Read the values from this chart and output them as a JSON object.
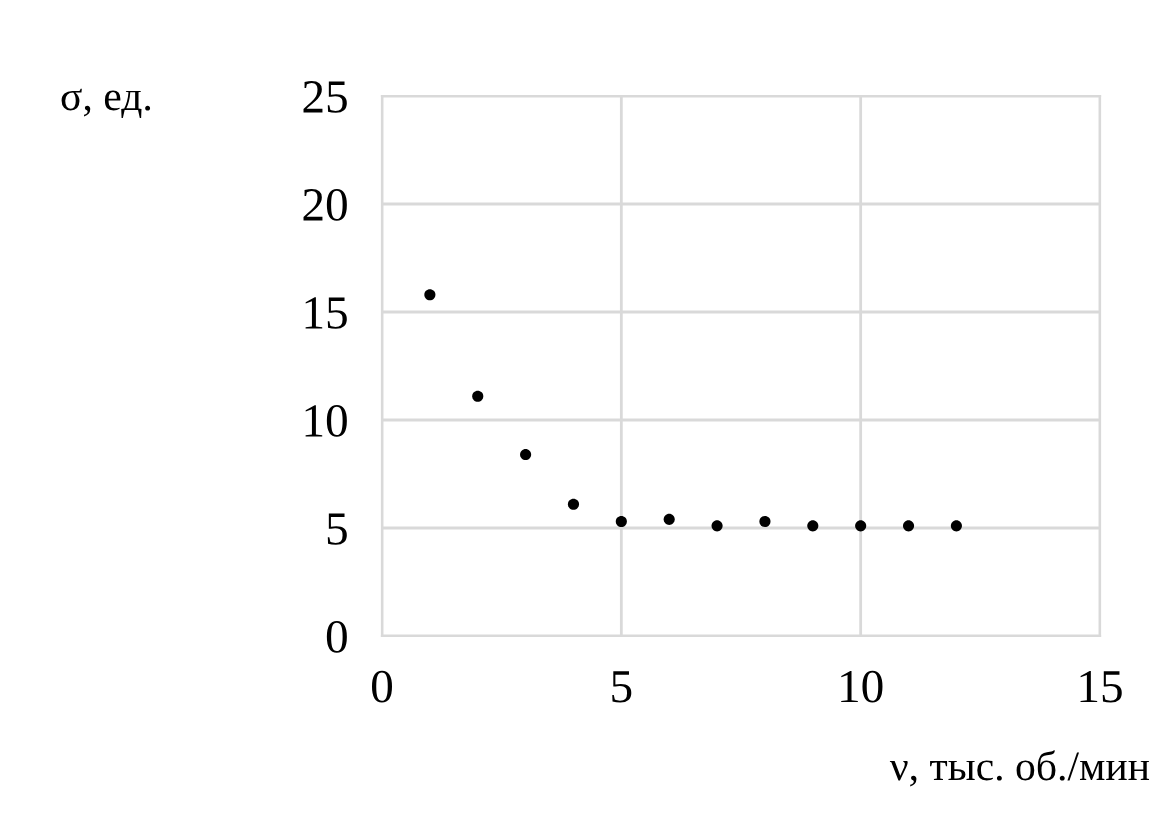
{
  "chart_data": {
    "type": "scatter",
    "xlabel": "ν, тыс. об./мин",
    "ylabel": "σ, ед.",
    "x": [
      1,
      2,
      3,
      4,
      5,
      6,
      7,
      8,
      9,
      10,
      11,
      12
    ],
    "values": [
      15.8,
      11.1,
      8.4,
      6.1,
      5.3,
      5.4,
      5.1,
      5.3,
      5.1,
      5.1,
      5.1,
      5.1
    ],
    "color": "#000000",
    "marker": "circle",
    "xlim": [
      0,
      15
    ],
    "xticks": [
      0,
      5,
      10,
      15
    ],
    "ylim": [
      0,
      25
    ],
    "yticks": [
      0,
      5,
      10,
      15,
      20,
      25
    ],
    "grid": true
  }
}
